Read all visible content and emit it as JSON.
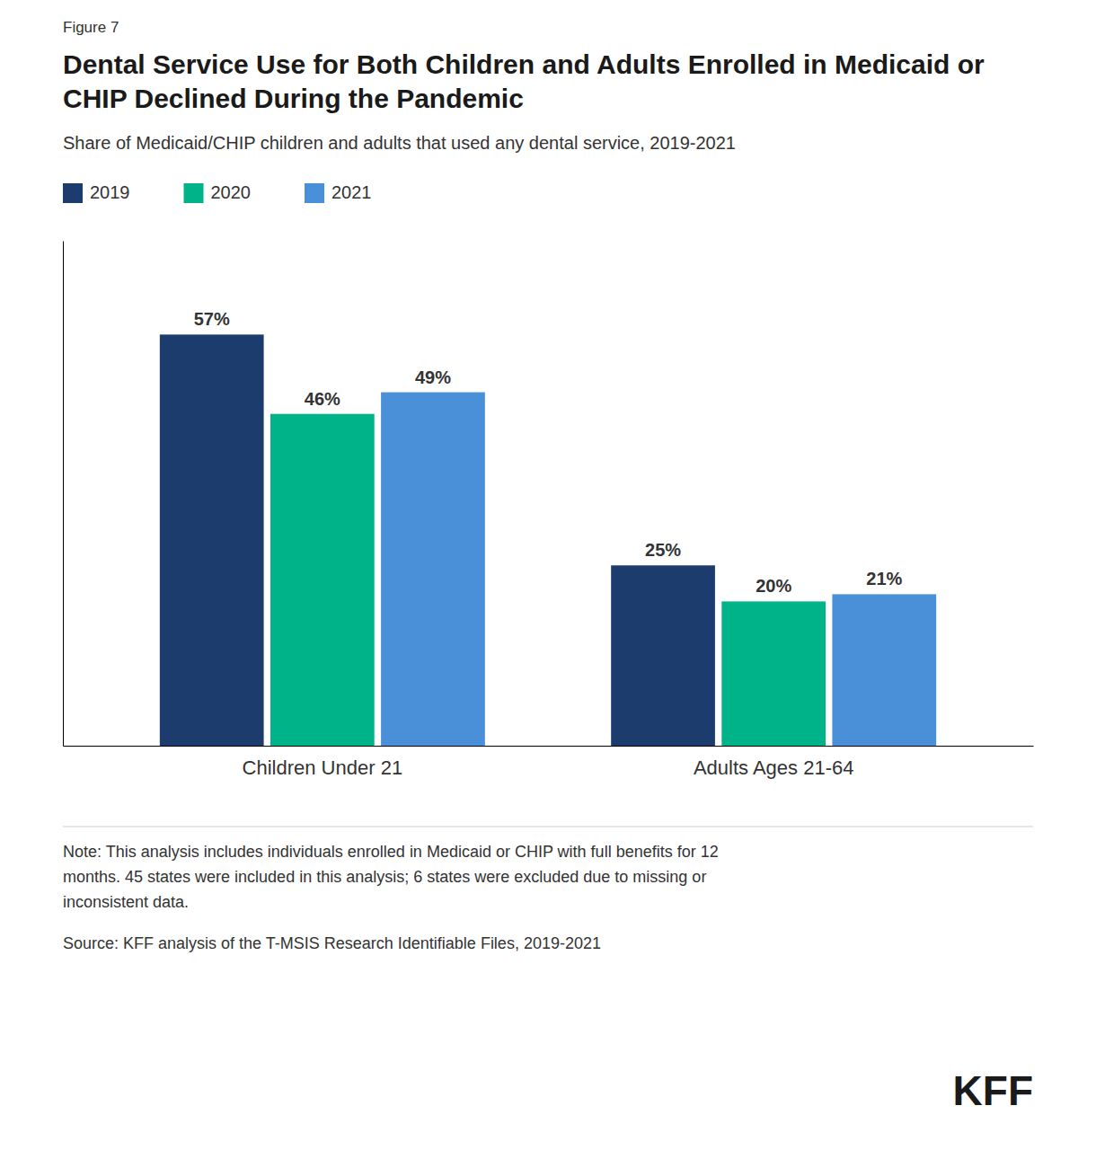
{
  "chart_data": {
    "type": "bar",
    "title": "Dental Service Use for Both Children and Adults Enrolled in Medicaid or CHIP Declined During the Pandemic",
    "subtitle": "Share of Medicaid/CHIP children and adults that used any dental service, 2019-2021",
    "categories": [
      "Children Under 21",
      "Adults Ages 21-64"
    ],
    "series": [
      {
        "name": "2019",
        "color": "#1d3c6e",
        "values": [
          57,
          25
        ],
        "value_labels": [
          "57%",
          "25%"
        ]
      },
      {
        "name": "2020",
        "color": "#00b388",
        "values": [
          46,
          20
        ],
        "value_labels": [
          "46%",
          "20%"
        ]
      },
      {
        "name": "2021",
        "color": "#4a90d9",
        "values": [
          49,
          21
        ],
        "value_labels": [
          "49%",
          "21%"
        ]
      }
    ],
    "ylim": [
      0,
      70
    ],
    "tick_labels": "x",
    "data_labels": true,
    "grid": false,
    "legend": "top-left",
    "annotations": [
      "Figure 7",
      "Note: This analysis includes individuals enrolled in Medicaid or CHIP with full benefits for 12\nmonths. 45 states were included in this analysis; 6 states were excluded due to missing or\ninconsistent data.",
      "Source: KFF analysis of the T-MSIS Research Identifiable Files, 2019-2021",
      "KFF"
    ]
  }
}
